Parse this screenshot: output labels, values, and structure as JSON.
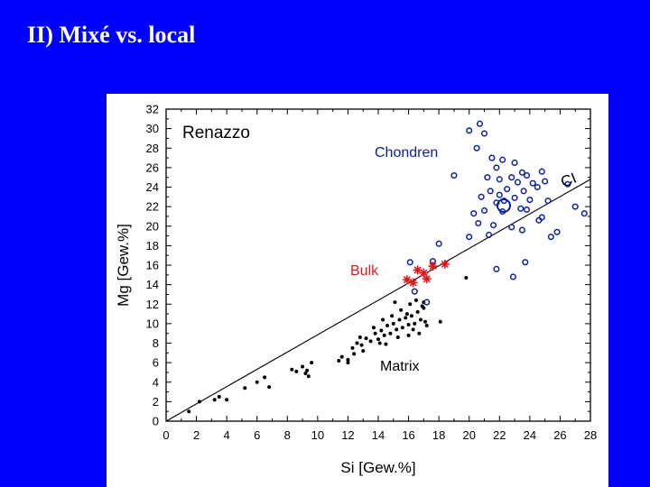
{
  "slide": {
    "title": "II) Mixé vs. local"
  },
  "colors": {
    "background": "#0000ff",
    "panel": "#ffffff",
    "chondren": "#0a1ea0",
    "bulk": "#e0161e",
    "matrix": "#000000"
  },
  "chart_data": {
    "type": "scatter",
    "title": "Renazzo",
    "xlabel": "Si [Gew.%]",
    "ylabel": "Mg [Gew.%]",
    "xlim": [
      0,
      28
    ],
    "ylim": [
      0,
      32
    ],
    "xticks": [
      "0",
      "2",
      "4",
      "6",
      "8",
      "10",
      "12",
      "14",
      "16",
      "18",
      "20",
      "22",
      "24",
      "26",
      "28"
    ],
    "yticks": [
      "0",
      "2",
      "4",
      "6",
      "8",
      "10",
      "12",
      "14",
      "16",
      "18",
      "20",
      "22",
      "24",
      "26",
      "28",
      "30",
      "32"
    ],
    "annotations": {
      "chondren": "Chondren",
      "bulk": "Bulk",
      "matrix": "Matrix",
      "ci": "CI"
    },
    "reference_line": {
      "name": "CI",
      "x": [
        0,
        28
      ],
      "y": [
        0,
        24.8
      ]
    },
    "series": [
      {
        "name": "Chondren",
        "marker": "open-circle",
        "points": [
          [
            20.7,
            30.5
          ],
          [
            20.0,
            29.8
          ],
          [
            21.0,
            29.5
          ],
          [
            20.5,
            28.0
          ],
          [
            21.5,
            27.0
          ],
          [
            22.2,
            26.8
          ],
          [
            23.0,
            26.5
          ],
          [
            21.8,
            26.0
          ],
          [
            23.5,
            25.5
          ],
          [
            24.8,
            25.6
          ],
          [
            22.8,
            25.0
          ],
          [
            23.8,
            25.2
          ],
          [
            21.2,
            25.0
          ],
          [
            22.0,
            24.8
          ],
          [
            23.2,
            24.5
          ],
          [
            24.2,
            24.4
          ],
          [
            25.0,
            24.6
          ],
          [
            22.5,
            23.8
          ],
          [
            21.4,
            23.6
          ],
          [
            23.6,
            23.6
          ],
          [
            24.5,
            24.0
          ],
          [
            22.0,
            23.2
          ],
          [
            20.8,
            23.0
          ],
          [
            23.0,
            22.9
          ],
          [
            24.0,
            22.7
          ],
          [
            21.8,
            22.4
          ],
          [
            23.4,
            21.8
          ],
          [
            25.2,
            22.6
          ],
          [
            21.0,
            21.6
          ],
          [
            22.2,
            21.5
          ],
          [
            23.8,
            21.7
          ],
          [
            20.3,
            21.3
          ],
          [
            24.8,
            20.9
          ],
          [
            20.6,
            20.3
          ],
          [
            21.6,
            20.1
          ],
          [
            22.8,
            19.9
          ],
          [
            23.5,
            19.6
          ],
          [
            24.6,
            20.6
          ],
          [
            25.8,
            19.4
          ],
          [
            21.3,
            19.1
          ],
          [
            20.0,
            18.9
          ],
          [
            25.4,
            18.9
          ],
          [
            27.0,
            22.0
          ],
          [
            27.6,
            21.3
          ],
          [
            26.5,
            24.3
          ],
          [
            19.0,
            25.2
          ],
          [
            18.0,
            18.2
          ],
          [
            17.6,
            16.4
          ],
          [
            16.1,
            16.3
          ],
          [
            21.8,
            15.6
          ],
          [
            23.7,
            16.3
          ],
          [
            22.9,
            14.8
          ],
          [
            16.4,
            13.3
          ],
          [
            17.2,
            12.2
          ],
          [
            22.3,
            22.6
          ]
        ]
      },
      {
        "name": "Bulk",
        "marker": "asterisk",
        "points": [
          [
            15.9,
            14.5
          ],
          [
            16.3,
            14.2
          ],
          [
            17.2,
            14.6
          ],
          [
            17.6,
            15.9
          ],
          [
            18.4,
            16.1
          ],
          [
            16.6,
            15.5
          ],
          [
            17.0,
            15.2
          ]
        ]
      },
      {
        "name": "Matrix",
        "marker": "filled-dot",
        "points": [
          [
            1.5,
            1.0
          ],
          [
            2.2,
            2.0
          ],
          [
            3.2,
            2.2
          ],
          [
            3.5,
            2.5
          ],
          [
            4.0,
            2.2
          ],
          [
            5.2,
            3.4
          ],
          [
            6.0,
            4.0
          ],
          [
            6.5,
            4.5
          ],
          [
            6.8,
            3.5
          ],
          [
            8.3,
            5.3
          ],
          [
            8.6,
            5.1
          ],
          [
            9.0,
            5.6
          ],
          [
            9.3,
            5.2
          ],
          [
            9.4,
            4.6
          ],
          [
            9.6,
            6.0
          ],
          [
            9.2,
            4.9
          ],
          [
            11.4,
            6.2
          ],
          [
            11.6,
            6.6
          ],
          [
            12.0,
            6.3
          ],
          [
            12.3,
            7.5
          ],
          [
            12.6,
            8.0
          ],
          [
            12.9,
            7.8
          ],
          [
            13.2,
            8.5
          ],
          [
            13.5,
            8.2
          ],
          [
            13.8,
            9.0
          ],
          [
            14.0,
            8.4
          ],
          [
            14.2,
            9.3
          ],
          [
            14.4,
            8.8
          ],
          [
            14.6,
            9.8
          ],
          [
            14.8,
            9.0
          ],
          [
            15.0,
            10.0
          ],
          [
            15.2,
            9.4
          ],
          [
            15.4,
            10.4
          ],
          [
            15.6,
            9.6
          ],
          [
            15.8,
            10.6
          ],
          [
            16.0,
            9.9
          ],
          [
            16.2,
            10.8
          ],
          [
            16.4,
            10.0
          ],
          [
            16.6,
            11.2
          ],
          [
            16.8,
            10.4
          ],
          [
            17.0,
            11.6
          ],
          [
            17.2,
            9.8
          ],
          [
            16.1,
            12.0
          ],
          [
            16.5,
            12.4
          ],
          [
            17.0,
            12.2
          ],
          [
            15.5,
            11.4
          ],
          [
            13.0,
            7.2
          ],
          [
            12.8,
            8.6
          ],
          [
            14.5,
            7.9
          ],
          [
            15.3,
            8.6
          ],
          [
            16.0,
            8.8
          ],
          [
            16.7,
            9.0
          ],
          [
            17.1,
            10.2
          ],
          [
            15.9,
            11.0
          ],
          [
            14.9,
            10.8
          ],
          [
            13.7,
            9.6
          ],
          [
            12.4,
            6.9
          ],
          [
            14.1,
            8.0
          ],
          [
            16.3,
            9.4
          ],
          [
            16.9,
            11.8
          ],
          [
            18.1,
            10.2
          ],
          [
            19.8,
            14.7
          ],
          [
            15.1,
            12.2
          ],
          [
            14.3,
            10.4
          ],
          [
            12.0,
            6.0
          ]
        ]
      }
    ]
  }
}
